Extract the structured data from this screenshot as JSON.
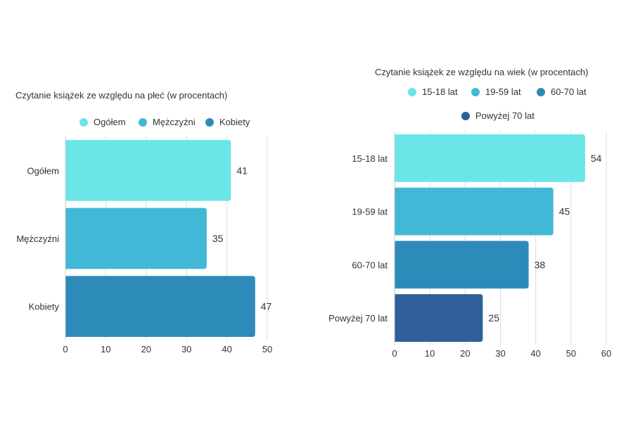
{
  "chart_data": [
    {
      "type": "bar",
      "orientation": "horizontal",
      "title": "Czytanie książek ze względu na płeć (w procentach)",
      "categories": [
        "Ogółem",
        "Mężczyźni",
        "Kobiety"
      ],
      "values": [
        41,
        35,
        47
      ],
      "colors": [
        "#6ce5e8",
        "#41b8d5",
        "#2d8bba"
      ],
      "legend": [
        "Ogółem",
        "Mężczyźni",
        "Kobiety"
      ],
      "xlim": [
        0,
        50
      ],
      "xticks": [
        0,
        10,
        20,
        30,
        40,
        50
      ],
      "grid": true,
      "legend_position": "top"
    },
    {
      "type": "bar",
      "orientation": "horizontal",
      "title": "Czytanie książek ze względu na wiek (w procentach)",
      "categories": [
        "15-18 lat",
        "19-59 lat",
        "60-70 lat",
        "Powyżej 70 lat"
      ],
      "values": [
        54,
        45,
        38,
        25
      ],
      "colors": [
        "#6ce5e8",
        "#41b8d5",
        "#2d8bba",
        "#2f5f98"
      ],
      "legend": [
        "15-18 lat",
        "19-59 lat",
        "60-70 lat",
        "Powyżej 70 lat"
      ],
      "xlim": [
        0,
        60
      ],
      "xticks": [
        0,
        10,
        20,
        30,
        40,
        50,
        60
      ],
      "grid": true,
      "legend_position": "top"
    }
  ]
}
